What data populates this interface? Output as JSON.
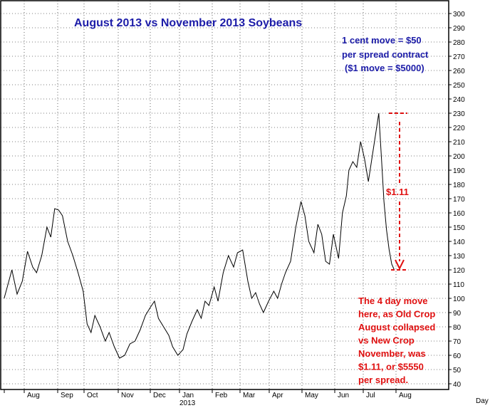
{
  "chart_data": {
    "type": "line",
    "title": "August 2013 vs November 2013 Soybeans",
    "ylim": [
      40,
      300
    ],
    "y_ticks": [
      40,
      50,
      60,
      70,
      80,
      90,
      100,
      110,
      120,
      130,
      140,
      150,
      160,
      170,
      180,
      190,
      200,
      210,
      220,
      230,
      240,
      250,
      260,
      270,
      280,
      290,
      300
    ],
    "x_ticks": [
      "Aug",
      "Sep",
      "Oct",
      "Nov",
      "Dec",
      "Jan",
      "Feb",
      "Mar",
      "Apr",
      "May",
      "Jun",
      "Jul",
      "Aug"
    ],
    "year_label": "2013",
    "x_axis_unit": "Day",
    "grid": true,
    "series": [
      {
        "color": "#000000",
        "x": [
          "Jul",
          "Aug",
          "Aug",
          "Aug",
          "Aug",
          "Sep",
          "Sep",
          "Sep",
          "Sep",
          "Oct",
          "Oct",
          "Oct",
          "Oct",
          "Nov",
          "Nov",
          "Nov",
          "Nov",
          "Dec",
          "Dec",
          "Dec",
          "Dec",
          "Jan",
          "Jan",
          "Jan",
          "Feb",
          "Feb",
          "Feb",
          "Mar",
          "Mar",
          "Mar",
          "Mar",
          "Apr",
          "Apr",
          "Apr",
          "May",
          "May",
          "May",
          "Jun",
          "Jun",
          "Jun",
          "Jul",
          "Jul",
          "Jul",
          "Jul",
          "Aug"
        ],
        "points": [
          [
            0.02,
            100
          ],
          [
            0.08,
            110
          ],
          [
            0.14,
            120
          ],
          [
            0.22,
            103
          ],
          [
            0.3,
            112
          ],
          [
            0.38,
            133
          ],
          [
            0.46,
            122
          ],
          [
            0.52,
            118
          ],
          [
            0.6,
            130
          ],
          [
            0.68,
            150
          ],
          [
            0.74,
            143
          ],
          [
            0.8,
            163
          ],
          [
            0.86,
            162
          ],
          [
            0.92,
            158
          ],
          [
            1.0,
            140
          ],
          [
            1.08,
            130
          ],
          [
            1.16,
            118
          ],
          [
            1.24,
            105
          ],
          [
            1.3,
            82
          ],
          [
            1.36,
            76
          ],
          [
            1.42,
            88
          ],
          [
            1.5,
            80
          ],
          [
            1.58,
            70
          ],
          [
            1.64,
            76
          ],
          [
            1.72,
            66
          ],
          [
            1.8,
            58
          ],
          [
            1.88,
            60
          ],
          [
            1.96,
            68
          ],
          [
            2.04,
            70
          ],
          [
            2.12,
            78
          ],
          [
            2.2,
            88
          ],
          [
            2.28,
            94
          ],
          [
            2.34,
            98
          ],
          [
            2.4,
            86
          ],
          [
            2.48,
            80
          ],
          [
            2.56,
            74
          ],
          [
            2.62,
            66
          ],
          [
            2.7,
            60
          ],
          [
            2.78,
            64
          ],
          [
            2.84,
            75
          ],
          [
            2.92,
            84
          ],
          [
            3.0,
            92
          ],
          [
            3.06,
            86
          ],
          [
            3.12,
            98
          ],
          [
            3.18,
            95
          ],
          [
            3.26,
            108
          ],
          [
            3.32,
            98
          ],
          [
            3.4,
            118
          ],
          [
            3.48,
            130
          ],
          [
            3.56,
            122
          ],
          [
            3.62,
            132
          ],
          [
            3.7,
            134
          ],
          [
            3.78,
            112
          ],
          [
            3.84,
            100
          ],
          [
            3.9,
            104
          ],
          [
            3.96,
            96
          ],
          [
            4.02,
            90
          ],
          [
            4.1,
            98
          ],
          [
            4.18,
            105
          ],
          [
            4.24,
            100
          ],
          [
            4.3,
            110
          ],
          [
            4.36,
            118
          ],
          [
            4.44,
            126
          ],
          [
            4.52,
            150
          ],
          [
            4.6,
            168
          ],
          [
            4.66,
            158
          ],
          [
            4.72,
            140
          ],
          [
            4.8,
            132
          ],
          [
            4.86,
            152
          ],
          [
            4.92,
            145
          ],
          [
            4.98,
            126
          ],
          [
            5.04,
            124
          ],
          [
            5.1,
            145
          ],
          [
            5.18,
            128
          ],
          [
            5.24,
            160
          ],
          [
            5.3,
            172
          ],
          [
            5.34,
            190
          ],
          [
            5.4,
            196
          ],
          [
            5.46,
            192
          ],
          [
            5.52,
            210
          ],
          [
            5.58,
            198
          ],
          [
            5.64,
            182
          ],
          [
            5.7,
            200
          ],
          [
            5.76,
            218
          ],
          [
            5.8,
            230
          ],
          [
            5.84,
            200
          ],
          [
            5.88,
            168
          ],
          [
            5.92,
            148
          ],
          [
            5.96,
            134
          ],
          [
            6.0,
            124
          ],
          [
            6.04,
            120
          ]
        ]
      }
    ],
    "annotations": {
      "spread_note_1": "1 cent move = $50",
      "spread_note_2": "per spread contract",
      "spread_note_3": "($1 move = $5000)",
      "move_label": "$1.11",
      "move_top": 230,
      "move_bottom": 120,
      "explain_lines": [
        "The 4 day move",
        "here, as Old Crop",
        "August collapsed",
        "vs New Crop",
        "November, was",
        "$1.11, or $5550",
        "per spread."
      ]
    }
  },
  "colors": {
    "title": "#1c1ca8",
    "annotation_red": "#e01010",
    "line": "#000000",
    "grid": "#000000"
  }
}
